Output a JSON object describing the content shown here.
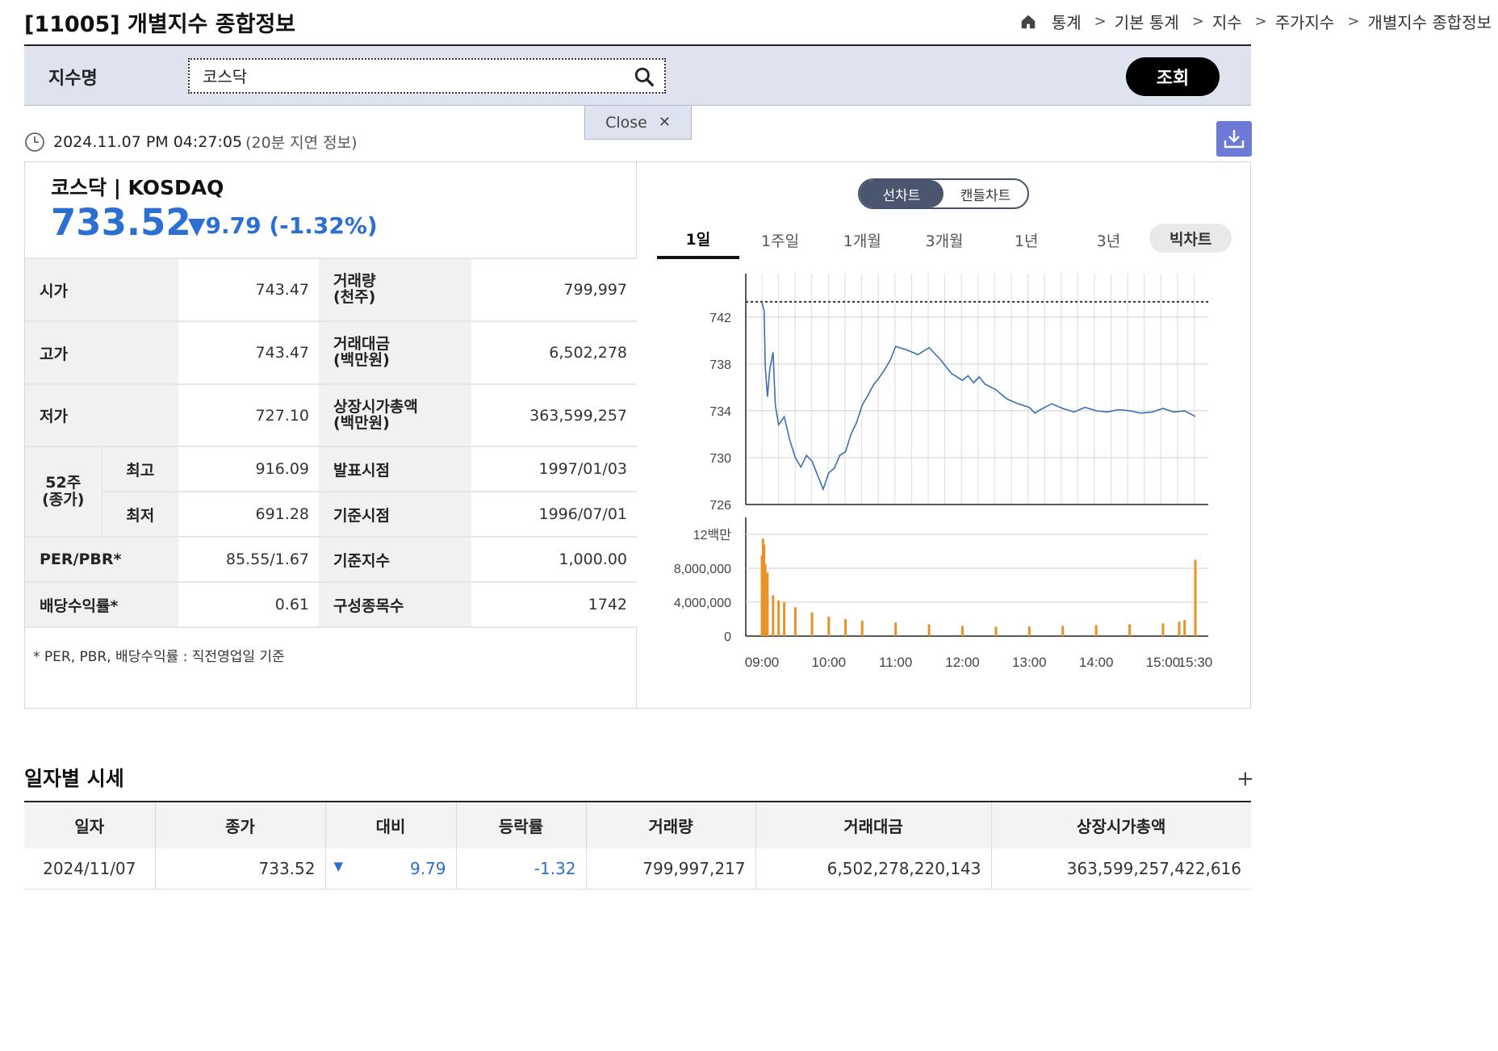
{
  "header": {
    "title": "[11005] 개별지수 종합정보",
    "breadcrumb": [
      "통계",
      "기본 통계",
      "지수",
      "주가지수",
      "개별지수 종합정보"
    ]
  },
  "search": {
    "label": "지수명",
    "value": "코스닥",
    "button": "조회",
    "close_label": "Close"
  },
  "timestamp": {
    "time": "2024.11.07 PM 04:27:05",
    "delay_note": "(20분 지연 정보)"
  },
  "summary": {
    "name": "코스닥 | KOSDAQ",
    "price": "733.52",
    "change": "▼9.79 (-1.32%)"
  },
  "stats": {
    "open_label": "시가",
    "open": "743.47",
    "high_label": "고가",
    "high": "743.47",
    "low_label": "저가",
    "low": "727.10",
    "week52_label": "52주\n(종가)",
    "week52_high_label": "최고",
    "week52_high": "916.09",
    "week52_low_label": "최저",
    "week52_low": "691.28",
    "per_label": "PER/PBR*",
    "per": "85.55/1.67",
    "div_label": "배당수익률*",
    "div": "0.61",
    "volume_label": "거래량\n(천주)",
    "volume": "799,997",
    "amount_label": "거래대금\n(백만원)",
    "amount": "6,502,278",
    "mcap_label": "상장시가총액\n(백만원)",
    "mcap": "363,599,257",
    "announce_label": "발표시점",
    "announce": "1997/01/03",
    "base_date_label": "기준시점",
    "base_date": "1996/07/01",
    "base_index_label": "기준지수",
    "base_index": "1,000.00",
    "constituents_label": "구성종목수",
    "constituents": "1742",
    "footnote": "* PER, PBR, 배당수익률 : 직전영업일 기준"
  },
  "chart_controls": {
    "toggle": [
      "선차트",
      "캔들차트"
    ],
    "periods": [
      "1일",
      "1주일",
      "1개월",
      "3개월",
      "1년",
      "3년",
      "빅차트"
    ]
  },
  "chart_data": [
    {
      "type": "line",
      "y_ticks": [
        "742",
        "738",
        "734",
        "730",
        "726"
      ],
      "ylim": [
        726,
        745
      ],
      "reference_line": 743.31,
      "x_ticks": [
        "09:00",
        "10:00",
        "11:00",
        "12:00",
        "13:00",
        "14:00",
        "15:00",
        "15:30"
      ],
      "x": [
        "09:00",
        "09:02",
        "09:03",
        "09:05",
        "09:07",
        "09:10",
        "09:12",
        "09:15",
        "09:20",
        "09:25",
        "09:30",
        "09:35",
        "09:40",
        "09:45",
        "09:50",
        "09:55",
        "10:00",
        "10:05",
        "10:10",
        "10:15",
        "10:20",
        "10:25",
        "10:30",
        "10:35",
        "10:40",
        "10:45",
        "10:50",
        "10:55",
        "11:00",
        "11:10",
        "11:20",
        "11:30",
        "11:40",
        "11:50",
        "12:00",
        "12:05",
        "12:10",
        "12:15",
        "12:20",
        "12:30",
        "12:40",
        "12:50",
        "13:00",
        "13:05",
        "13:10",
        "13:20",
        "13:30",
        "13:40",
        "13:50",
        "14:00",
        "14:10",
        "14:20",
        "14:30",
        "14:40",
        "14:50",
        "15:00",
        "15:10",
        "15:20",
        "15:30"
      ],
      "values": [
        743.3,
        742.5,
        737.8,
        735.2,
        737.5,
        739.0,
        734.5,
        732.8,
        733.5,
        731.5,
        730.0,
        729.2,
        730.2,
        729.7,
        728.5,
        727.3,
        728.7,
        729.1,
        730.2,
        730.5,
        732.0,
        733.0,
        734.5,
        735.3,
        736.2,
        736.8,
        737.5,
        738.3,
        739.5,
        739.2,
        738.8,
        739.4,
        738.4,
        737.2,
        736.6,
        737.0,
        736.4,
        736.9,
        736.3,
        735.8,
        735.0,
        734.6,
        734.3,
        733.8,
        734.1,
        734.6,
        734.2,
        733.9,
        734.3,
        734.0,
        733.9,
        734.1,
        734.0,
        733.8,
        733.9,
        734.2,
        733.9,
        734.0,
        733.52
      ]
    },
    {
      "type": "bar",
      "y_ticks": [
        "12백만",
        "8,000,000",
        "4,000,000",
        "0"
      ],
      "ylim": [
        0,
        12000000
      ],
      "x_ticks": [
        "09:00",
        "10:00",
        "11:00",
        "12:00",
        "13:00",
        "14:00",
        "15:00",
        "15:30"
      ],
      "x": [
        "09:00",
        "09:01",
        "09:02",
        "09:03",
        "09:05",
        "09:10",
        "09:15",
        "09:20",
        "09:30",
        "09:45",
        "10:00",
        "10:15",
        "10:30",
        "11:00",
        "11:30",
        "12:00",
        "12:30",
        "13:00",
        "13:30",
        "14:00",
        "14:30",
        "15:00",
        "15:15",
        "15:20",
        "15:30"
      ],
      "values": [
        9500000,
        11500000,
        10800000,
        8500000,
        7500000,
        4800000,
        4200000,
        4000000,
        3400000,
        2800000,
        2300000,
        2000000,
        1800000,
        1600000,
        1400000,
        1200000,
        1100000,
        1150000,
        1200000,
        1300000,
        1400000,
        1500000,
        1700000,
        1900000,
        9000000
      ]
    }
  ],
  "daily": {
    "title": "일자별 시세",
    "plus": "+",
    "headers": [
      "일자",
      "종가",
      "대비",
      "등락률",
      "거래량",
      "거래대금",
      "상장시가총액"
    ],
    "row": {
      "date": "2024/11/07",
      "close": "733.52",
      "diff_mark": "▼",
      "diff": "9.79",
      "rate": "-1.32",
      "volume": "799,997,217",
      "amount": "6,502,278,220,143",
      "mcap": "363,599,257,422,616"
    }
  },
  "colors": {
    "accent_blue": "#2a6fd1",
    "line": "#3a6fb5",
    "bar": "#e8922a",
    "download": "#6c7ad6"
  },
  "icons": [
    "home-icon",
    "chevron-right-icon",
    "search-icon",
    "close-icon",
    "clock-icon",
    "download-icon"
  ]
}
